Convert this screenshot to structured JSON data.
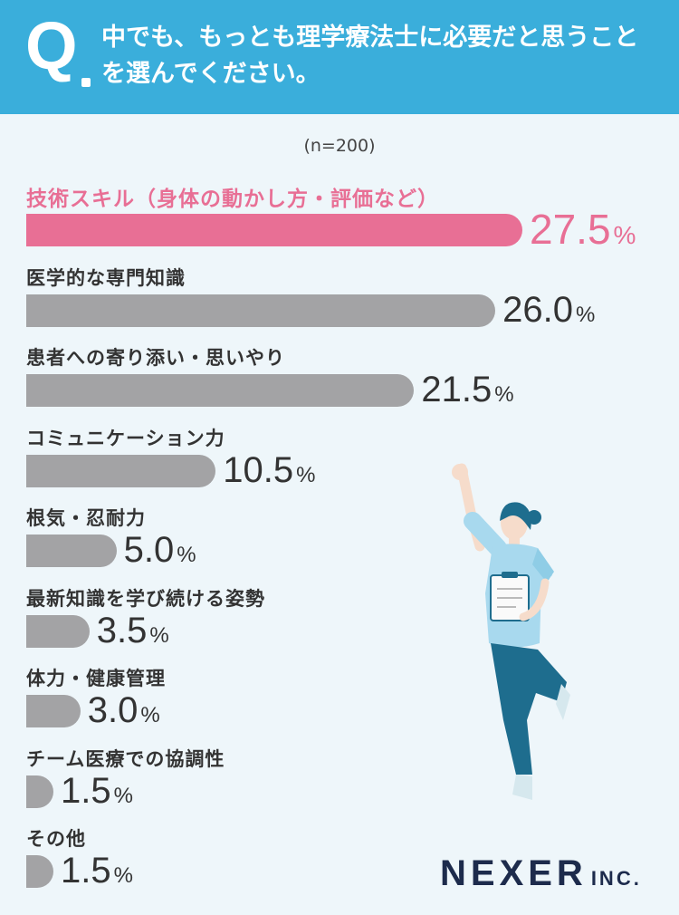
{
  "header": {
    "q": "Q",
    "question": "中でも、もっとも理学療法士に必要だと思うことを選んでください。"
  },
  "sample_size": "(n=200)",
  "unit": "%",
  "colors": {
    "accent": "#e86f95",
    "bar": "#a3a3a5",
    "header": "#3aaedb"
  },
  "logo": {
    "name": "NEXER",
    "suffix": "INC."
  },
  "illustration": "physical-therapist-cheering",
  "chart_data": {
    "type": "bar",
    "orientation": "horizontal",
    "unit": "%",
    "xlim": [
      0,
      30
    ],
    "categories": [
      "技術スキル（身体の動かし方・評価など）",
      "医学的な専門知識",
      "患者への寄り添い・思いやり",
      "コミュニケーション力",
      "根気・忍耐力",
      "最新知識を学び続ける姿勢",
      "体力・健康管理",
      "チーム医療での協調性",
      "その他"
    ],
    "values": [
      27.5,
      26.0,
      21.5,
      10.5,
      5.0,
      3.5,
      3.0,
      1.5,
      1.5
    ],
    "value_labels": [
      "27.5",
      "26.0",
      "21.5",
      "10.5",
      "5.0",
      "3.5",
      "3.0",
      "1.5",
      "1.5"
    ],
    "highlight_index": 0
  }
}
